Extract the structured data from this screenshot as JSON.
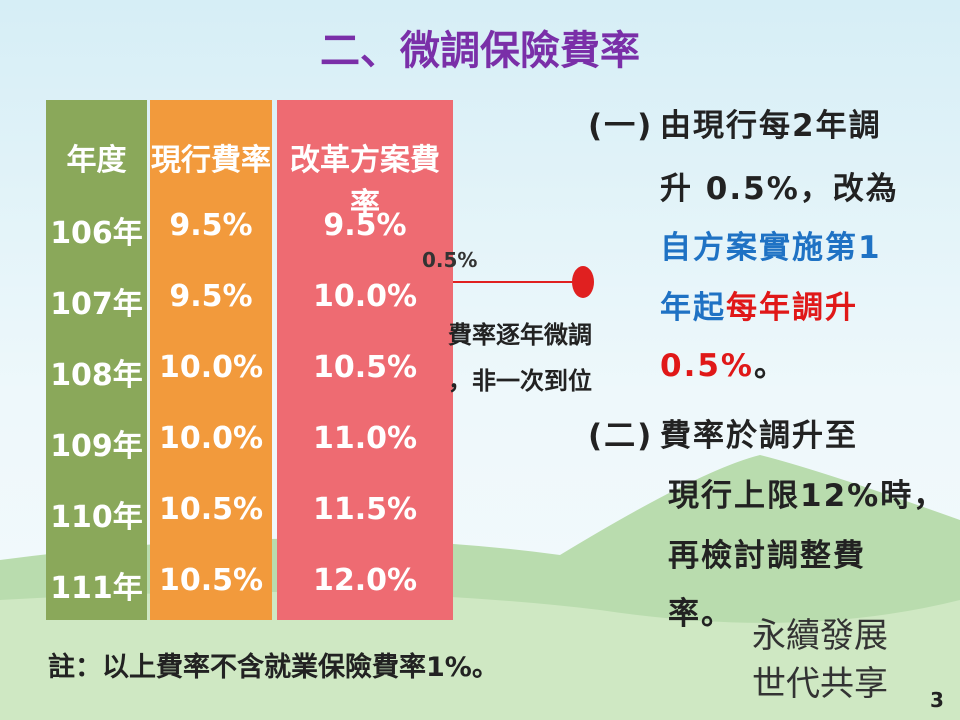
{
  "title": "二、微調保險費率",
  "table": {
    "headers": [
      "年度",
      "現行費率",
      "改革方案費率"
    ],
    "rows": [
      [
        "106年",
        "9.5%",
        "9.5%"
      ],
      [
        "107年",
        "9.5%",
        "10.0%"
      ],
      [
        "108年",
        "10.0%",
        "10.5%"
      ],
      [
        "109年",
        "10.0%",
        "11.0%"
      ],
      [
        "110年",
        "10.5%",
        "11.5%"
      ],
      [
        "111年",
        "10.5%",
        "12.0%"
      ]
    ]
  },
  "annotation": {
    "step": "0.5%",
    "callout": [
      "費率逐年微調",
      "，非一次到位"
    ]
  },
  "points": [
    {
      "marker": "(一)",
      "lines": [
        [
          "由現行每2年調"
        ],
        [
          "升 0.5%，改為"
        ],
        [
          "自方案實施第1"
        ],
        [
          "年起",
          "每年調升"
        ],
        [
          "0.5%",
          "。"
        ]
      ]
    },
    {
      "marker": "(二)",
      "lines": [
        [
          "費率於調升至"
        ],
        [
          "現行上限12%時，"
        ],
        [
          "再檢討調整費"
        ],
        [
          "率。"
        ]
      ]
    }
  ],
  "note": "註：以上費率不含就業保險費率1%。",
  "slogan": [
    "永續發展",
    "世代共享"
  ],
  "page_number": "3"
}
